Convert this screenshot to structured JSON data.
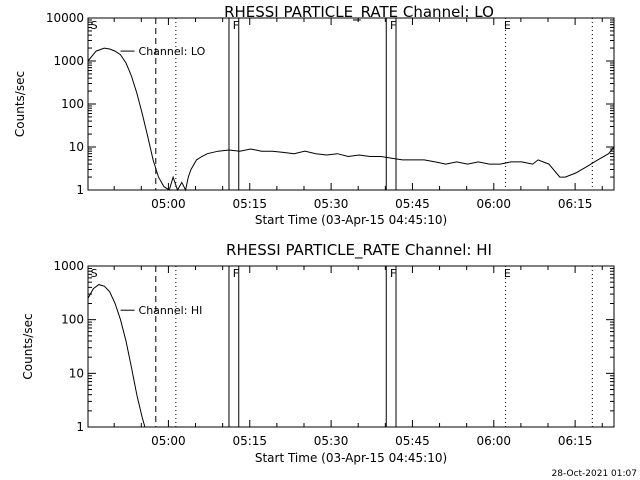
{
  "footer": {
    "timestamp": "28-Oct-2021 01:07"
  },
  "chart_data": [
    {
      "type": "line",
      "title": "RHESSI PARTICLE_RATE Channel: LO",
      "xlabel": "Start Time (03-Apr-15 04:45:10)",
      "ylabel": "Counts/sec",
      "yscale": "log",
      "ylim": [
        1,
        10000
      ],
      "xlim_minutes_after_start": [
        0,
        97
      ],
      "x_ticks": [
        "05:00",
        "05:15",
        "05:30",
        "05:45",
        "06:00",
        "06:15"
      ],
      "y_ticks": [
        "1",
        "10",
        "100",
        "1000",
        "10000"
      ],
      "series": [
        {
          "name": "Channel: LO",
          "x": [
            0.0,
            1.5,
            3.0,
            4.0,
            5.0,
            6.0,
            7.0,
            8.0,
            9.0,
            10.0,
            11.0,
            12.0,
            13.0,
            14.0,
            15.0,
            15.7,
            16.5,
            17.3,
            18.0,
            18.5,
            19.0,
            20.0,
            21.0,
            22.0,
            24.0,
            26.0,
            28.0,
            30.0,
            32.0,
            34.0,
            36.0,
            38.0,
            40.0,
            42.0,
            44.0,
            46.0,
            48.0,
            50.0,
            52.0,
            54.0,
            56.0,
            58.0,
            60.0,
            62.0,
            64.0,
            66.0,
            68.0,
            70.0,
            72.0,
            74.0,
            76.0,
            78.0,
            80.0,
            82.0,
            83.0,
            85.0,
            87.0,
            88.0,
            90.0,
            92.0,
            94.0,
            96.0,
            97.0
          ],
          "y": [
            1000,
            1700,
            2000,
            1900,
            1700,
            1400,
            900,
            450,
            180,
            60,
            18,
            5,
            2,
            1.2,
            1,
            2,
            1,
            1.5,
            1,
            2,
            3,
            5,
            6,
            7,
            8,
            8.5,
            8,
            9,
            8,
            8,
            7.5,
            7,
            8,
            7,
            6.5,
            7,
            6,
            6.5,
            6,
            6,
            5.5,
            5,
            5,
            5,
            4.5,
            4,
            4.5,
            4,
            4.5,
            4,
            4,
            4.5,
            4.5,
            4,
            5,
            4,
            2,
            2,
            2.5,
            3.5,
            5,
            7,
            10
          ]
        }
      ],
      "annotations": [
        {
          "text": "Channel: LO",
          "x": 6.0,
          "y": 1700
        }
      ],
      "markers": [
        {
          "label": "S",
          "x": 0.3
        },
        {
          "label": "F",
          "x": 26.5
        },
        {
          "label": "F",
          "x": 55.5
        },
        {
          "label": "E",
          "x": 76.5
        }
      ],
      "vlines_solid": [
        26.0,
        27.8,
        55.0,
        56.8
      ],
      "vlines_dashed": [
        12.5
      ],
      "vlines_dotted": [
        16.2,
        77.0,
        93.0
      ]
    },
    {
      "type": "line",
      "title": "RHESSI PARTICLE_RATE Channel: HI",
      "xlabel": "Start Time (03-Apr-15 04:45:10)",
      "ylabel": "Counts/sec",
      "yscale": "log",
      "ylim": [
        1,
        1000
      ],
      "xlim_minutes_after_start": [
        0,
        97
      ],
      "x_ticks": [
        "05:00",
        "05:15",
        "05:30",
        "05:45",
        "06:00",
        "06:15"
      ],
      "y_ticks": [
        "1",
        "10",
        "100",
        "1000"
      ],
      "series": [
        {
          "name": "Channel: HI",
          "x": [
            0.0,
            1.0,
            2.0,
            3.0,
            4.0,
            5.0,
            6.0,
            7.0,
            8.0,
            9.0,
            10.0,
            10.5
          ],
          "y": [
            250,
            380,
            450,
            420,
            330,
            200,
            100,
            40,
            13,
            4,
            1.5,
            1
          ]
        }
      ],
      "annotations": [
        {
          "text": "Channel: HI",
          "x": 6.0,
          "y": 150
        }
      ],
      "markers": [
        {
          "label": "S",
          "x": 0.3
        },
        {
          "label": "F",
          "x": 26.5
        },
        {
          "label": "F",
          "x": 55.5
        },
        {
          "label": "E",
          "x": 76.5
        }
      ],
      "vlines_solid": [
        26.0,
        27.8,
        55.0,
        56.8
      ],
      "vlines_dashed": [
        12.5
      ],
      "vlines_dotted": [
        16.2,
        77.0,
        93.0
      ]
    }
  ]
}
